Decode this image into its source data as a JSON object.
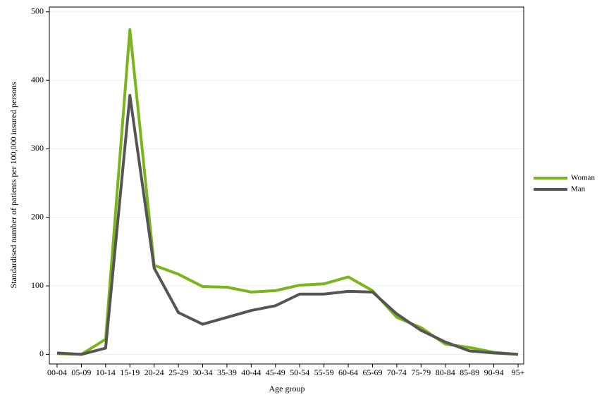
{
  "chart_data": {
    "type": "line",
    "x_label": "Age group",
    "y_label": "Standardised number of patients per 100,000 insured persons",
    "categories": [
      "00-04",
      "05-09",
      "10-14",
      "15-19",
      "20-24",
      "25-29",
      "30-34",
      "35-39",
      "40-44",
      "45-49",
      "50-54",
      "55-59",
      "60-64",
      "65-69",
      "70-74",
      "75-79",
      "80-84",
      "85-89",
      "90-94",
      "95+"
    ],
    "series": [
      {
        "name": "Woman",
        "color": "#7ab51d",
        "values": [
          1,
          0,
          22,
          474,
          130,
          117,
          99,
          98,
          91,
          93,
          101,
          103,
          113,
          93,
          54,
          39,
          15,
          10,
          3,
          0
        ]
      },
      {
        "name": "Man",
        "color": "#555555",
        "values": [
          2,
          0,
          9,
          378,
          126,
          61,
          44,
          54,
          64,
          71,
          88,
          88,
          92,
          91,
          59,
          35,
          18,
          5,
          2,
          0
        ]
      }
    ],
    "ylim": [
      -14,
      507
    ],
    "yticks": [
      0,
      100,
      200,
      300,
      400,
      500
    ],
    "grid": true,
    "legend": "right"
  }
}
